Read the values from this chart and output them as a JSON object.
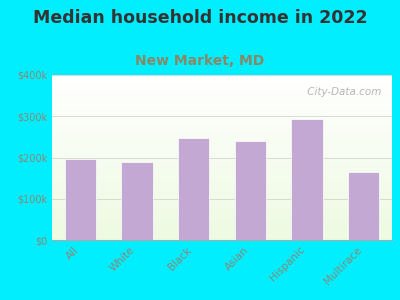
{
  "title": "Median household income in 2022",
  "subtitle": "New Market, MD",
  "categories": [
    "All",
    "White",
    "Black",
    "Asian",
    "Hispanic",
    "Multirace"
  ],
  "values": [
    197000,
    190000,
    248000,
    240000,
    293000,
    165000
  ],
  "bar_color": "#c4a8d4",
  "background_color": "#00eeff",
  "ylim": [
    0,
    400000
  ],
  "yticks": [
    0,
    100000,
    200000,
    300000,
    400000
  ],
  "ytick_labels": [
    "$0",
    "$100k",
    "$200k",
    "$300k",
    "$400k"
  ],
  "title_fontsize": 12.5,
  "subtitle_fontsize": 10,
  "title_color": "#333333",
  "subtitle_color": "#888866",
  "tick_color": "#888877",
  "watermark": " City-Data.com"
}
